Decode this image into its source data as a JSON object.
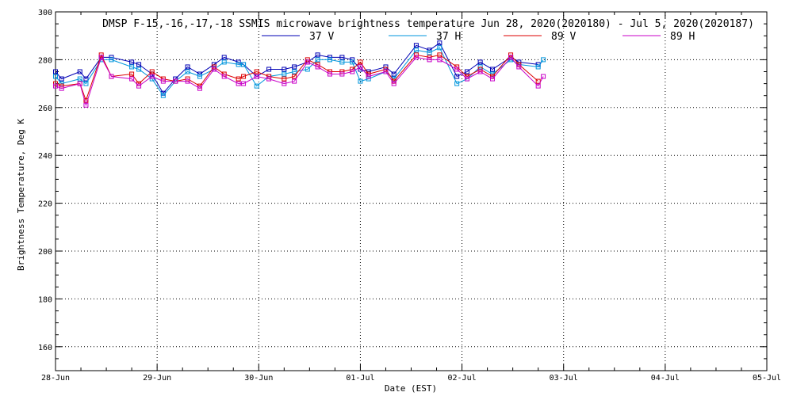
{
  "chart_data": {
    "type": "line",
    "title": "DMSP F-15,-16,-17,-18 SSMIS microwave brightness temperature Jun 28, 2020(2020180) - Jul  5, 2020(2020187)",
    "xlabel": "Date (EST)",
    "ylabel": "Brightness Temperature, Deg K",
    "x_tick_labels": [
      "28-Jun",
      "29-Jun",
      "30-Jun",
      "01-Jul",
      "02-Jul",
      "03-Jul",
      "04-Jul",
      "05-Jul"
    ],
    "xlim": [
      0,
      7
    ],
    "ylim": [
      150,
      300
    ],
    "y_ticks": [
      160,
      180,
      200,
      220,
      240,
      260,
      280,
      300
    ],
    "grid": "dotted",
    "legend_position": "top",
    "series": [
      {
        "name": "37 V",
        "color": "#0000b4",
        "x": [
          0.0,
          0.06,
          0.24,
          0.3,
          0.45,
          0.55,
          0.75,
          0.82,
          0.95,
          1.06,
          1.18,
          1.3,
          1.42,
          1.56,
          1.66,
          1.8,
          1.85,
          1.98,
          2.1,
          2.25,
          2.35,
          2.48,
          2.58,
          2.7,
          2.82,
          2.92,
          3.0,
          3.08,
          3.25,
          3.33,
          3.55,
          3.68,
          3.78,
          3.95,
          4.05,
          4.18,
          4.3,
          4.48,
          4.56,
          4.75
        ],
        "values": [
          275,
          272,
          275,
          272,
          281,
          281,
          279,
          278,
          274,
          266,
          272,
          277,
          274,
          278,
          281,
          279,
          278,
          273,
          276,
          276,
          277,
          279,
          282,
          281,
          281,
          280,
          276,
          275,
          277,
          274,
          286,
          284,
          287,
          273,
          275,
          279,
          276,
          281,
          279,
          278
        ]
      },
      {
        "name": "37 H",
        "color": "#0096dc",
        "x": [
          0.0,
          0.06,
          0.24,
          0.3,
          0.45,
          0.55,
          0.75,
          0.82,
          0.95,
          1.06,
          1.18,
          1.3,
          1.42,
          1.56,
          1.66,
          1.8,
          1.85,
          1.98,
          2.1,
          2.25,
          2.35,
          2.48,
          2.58,
          2.7,
          2.82,
          2.92,
          3.0,
          3.08,
          3.25,
          3.33,
          3.55,
          3.68,
          3.78,
          3.95,
          4.05,
          4.18,
          4.3,
          4.48,
          4.56,
          4.75,
          4.8
        ],
        "values": [
          273,
          270,
          272,
          270,
          280,
          280,
          277,
          276,
          272,
          265,
          271,
          275,
          273,
          276,
          279,
          278,
          278,
          269,
          273,
          274,
          275,
          276,
          280,
          280,
          279,
          279,
          271,
          272,
          275,
          272,
          284,
          283,
          285,
          270,
          272,
          277,
          274,
          280,
          278,
          277,
          280
        ]
      },
      {
        "name": "89 V",
        "color": "#dc0000",
        "x": [
          0.0,
          0.06,
          0.24,
          0.3,
          0.45,
          0.55,
          0.75,
          0.82,
          0.95,
          1.06,
          1.18,
          1.3,
          1.42,
          1.56,
          1.66,
          1.8,
          1.85,
          1.98,
          2.1,
          2.25,
          2.35,
          2.48,
          2.58,
          2.7,
          2.82,
          2.92,
          3.0,
          3.08,
          3.25,
          3.33,
          3.55,
          3.68,
          3.78,
          3.95,
          4.05,
          4.18,
          4.3,
          4.48,
          4.56,
          4.75
        ],
        "values": [
          270,
          269,
          270,
          263,
          282,
          273,
          274,
          270,
          275,
          272,
          271,
          272,
          269,
          277,
          274,
          272,
          273,
          275,
          273,
          272,
          273,
          280,
          278,
          275,
          275,
          276,
          279,
          274,
          276,
          271,
          282,
          281,
          282,
          277,
          273,
          276,
          273,
          282,
          278,
          271
        ]
      },
      {
        "name": "89 H",
        "color": "#c800c8",
        "x": [
          0.0,
          0.06,
          0.24,
          0.3,
          0.45,
          0.55,
          0.75,
          0.82,
          0.95,
          1.06,
          1.18,
          1.3,
          1.42,
          1.56,
          1.66,
          1.8,
          1.85,
          1.98,
          2.1,
          2.25,
          2.35,
          2.48,
          2.58,
          2.7,
          2.82,
          2.92,
          3.0,
          3.08,
          3.25,
          3.33,
          3.55,
          3.68,
          3.78,
          3.95,
          4.05,
          4.18,
          4.3,
          4.48,
          4.56,
          4.75,
          4.8
        ],
        "values": [
          269,
          268,
          270,
          261,
          281,
          273,
          272,
          269,
          273,
          271,
          271,
          271,
          268,
          276,
          273,
          270,
          270,
          273,
          272,
          270,
          271,
          279,
          277,
          274,
          274,
          275,
          277,
          273,
          275,
          270,
          281,
          280,
          280,
          276,
          272,
          275,
          272,
          281,
          277,
          269,
          273
        ]
      }
    ]
  }
}
